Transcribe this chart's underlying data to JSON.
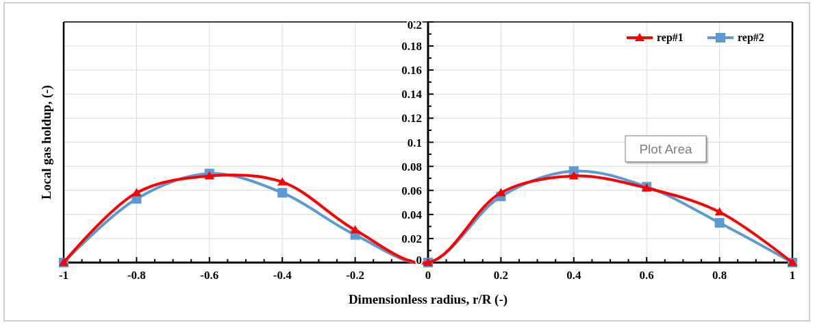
{
  "chart_data": {
    "type": "line",
    "xlabel": "Dimensionless radius, r/R (-)",
    "ylabel": "Local gas holdup, (-)",
    "x": [
      -1,
      -0.8,
      -0.6,
      -0.4,
      -0.2,
      0,
      0.2,
      0.4,
      0.6,
      0.8,
      1
    ],
    "series": [
      {
        "name": "rep#1",
        "color": "#ff0000",
        "marker": "triangle",
        "values": [
          0,
          0.058,
          0.072,
          0.067,
          0.027,
          0,
          0.058,
          0.072,
          0.062,
          0.042,
          0
        ]
      },
      {
        "name": "rep#2",
        "color": "#5b9bd5",
        "marker": "square",
        "values": [
          0,
          0.053,
          0.074,
          0.058,
          0.023,
          0,
          0.055,
          0.076,
          0.063,
          0.033,
          0
        ]
      }
    ],
    "xlim": [
      -1,
      1
    ],
    "xticks": [
      -1,
      -0.8,
      -0.6,
      -0.4,
      -0.2,
      0,
      0.2,
      0.4,
      0.6,
      0.8,
      1
    ],
    "ylim": [
      0,
      0.2
    ],
    "yticks": [
      {
        "value": 0,
        "label": "0"
      },
      0.02,
      0.04,
      0.06,
      0.08,
      0.1,
      0.12,
      0.14,
      0.16,
      0.18,
      0.2
    ],
    "grid": true,
    "legend": "top right",
    "line_style": "solid",
    "annotations": [
      "Plot Area"
    ]
  }
}
